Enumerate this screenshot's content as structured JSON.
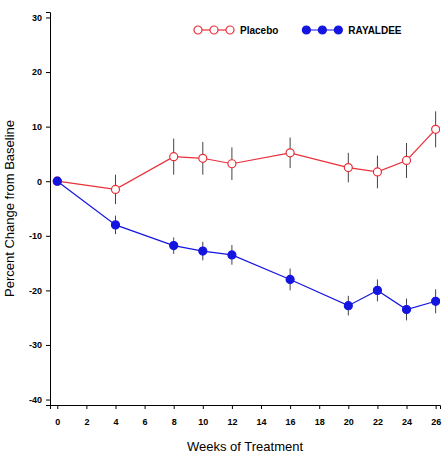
{
  "chart_data": {
    "type": "line",
    "x_label": "Weeks of Treatment",
    "y_label": "Percent Change from Baseline",
    "x": [
      0,
      4,
      8,
      10,
      12,
      16,
      20,
      22,
      24,
      26
    ],
    "series": [
      {
        "name": "Placebo",
        "color": "#e8303a",
        "marker": "circle-open",
        "values": [
          0,
          -1.5,
          4.5,
          4.2,
          3.2,
          5.2,
          2.5,
          1.7,
          3.8,
          9.5
        ],
        "errors": [
          0,
          2.7,
          3.3,
          3.0,
          3.0,
          2.8,
          2.7,
          3.0,
          3.2,
          3.3
        ]
      },
      {
        "name": "RAYALDEE",
        "color": "#1515e0",
        "marker": "circle",
        "values": [
          0,
          -8,
          -11.8,
          -12.8,
          -13.5,
          -18,
          -22.8,
          -20,
          -23.5,
          -22
        ],
        "errors": [
          0,
          1.7,
          1.5,
          1.7,
          1.8,
          2.0,
          1.8,
          2.0,
          2.0,
          2.2
        ]
      }
    ],
    "xlim": [
      -0.5,
      26.3
    ],
    "ylim": [
      -41,
      31
    ],
    "xticks": [
      0,
      2,
      4,
      6,
      8,
      10,
      12,
      14,
      16,
      18,
      20,
      22,
      24,
      26
    ],
    "yticks": [
      -40,
      -30,
      -20,
      -10,
      0,
      10,
      20,
      30
    ],
    "legend": "upper right",
    "grid": false
  }
}
